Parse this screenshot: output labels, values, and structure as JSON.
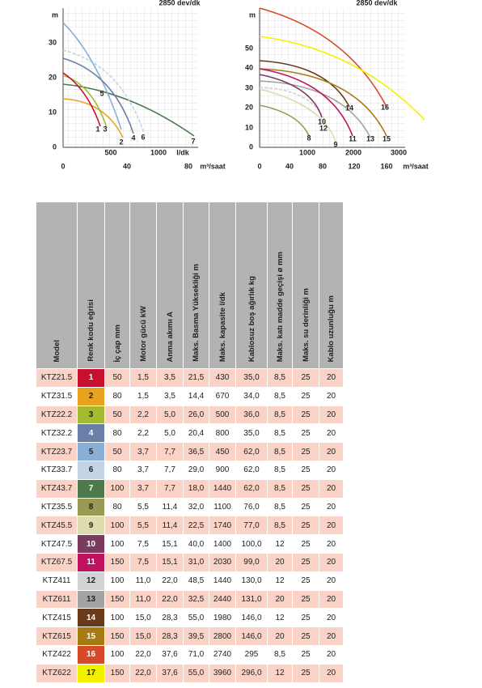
{
  "charts": [
    {
      "speed": "2850 dev/dk",
      "y_unit": "m",
      "yticks": [
        "0",
        "10",
        "20",
        "30"
      ],
      "flow_ticks": [
        "500",
        "1000"
      ],
      "flow_unit": "l/dk",
      "m3_ticks": [
        "0",
        "40",
        "80"
      ],
      "m3_unit": "m³/saat",
      "curve_labels": [
        "1",
        "3",
        "2",
        "4",
        "6",
        "7",
        "5"
      ]
    },
    {
      "speed": "2850 dev/dk",
      "y_unit": "m",
      "yticks": [
        "0",
        "10",
        "20",
        "30",
        "40",
        "50"
      ],
      "flow_ticks": [
        "1000",
        "2000",
        "3000"
      ],
      "m3_ticks": [
        "0",
        "40",
        "80",
        "120",
        "160"
      ],
      "m3_unit": "m³/saat",
      "curve_labels": [
        "8",
        "9",
        "10",
        "12",
        "11",
        "13",
        "14",
        "15",
        "16"
      ]
    }
  ],
  "table": {
    "headers": [
      "Model",
      "Renk kodu eğrisi",
      "İç çap mm",
      "Motor gücü kW",
      "Anma akımı A",
      "Maks. Basma Yüksekliği m",
      "Maks. kapasite l/dk",
      "Kablosuz boş ağırlık kg",
      "Maks. katı madde geçişi ø mm",
      "Maks. su derinliği m",
      "Kablo uzunluğu m"
    ],
    "code_colors": [
      "#c8102e",
      "#e8a21f",
      "#a3ba32",
      "#6a7fa8",
      "#8ab0d8",
      "#c5d3e6",
      "#4d7a4d",
      "#9a9a55",
      "#dcdcae",
      "#7a3b5e",
      "#c0135f",
      "#d2d2d2",
      "#a3a3a3",
      "#6b3a1a",
      "#a87a12",
      "#d64a2a",
      "#f2f200"
    ],
    "rows": [
      [
        "KTZ21.5",
        "1",
        "50",
        "1,5",
        "3,5",
        "21,5",
        "430",
        "35,0",
        "8,5",
        "25",
        "20"
      ],
      [
        "KTZ31.5",
        "2",
        "80",
        "1,5",
        "3,5",
        "14,4",
        "670",
        "34,0",
        "8,5",
        "25",
        "20"
      ],
      [
        "KTZ22.2",
        "3",
        "50",
        "2,2",
        "5,0",
        "26,0",
        "500",
        "36,0",
        "8,5",
        "25",
        "20"
      ],
      [
        "KTZ32.2",
        "4",
        "80",
        "2,2",
        "5,0",
        "20,4",
        "800",
        "35,0",
        "8,5",
        "25",
        "20"
      ],
      [
        "KTZ23.7",
        "5",
        "50",
        "3,7",
        "7,7",
        "36,5",
        "450",
        "62,0",
        "8,5",
        "25",
        "20"
      ],
      [
        "KTZ33.7",
        "6",
        "80",
        "3,7",
        "7,7",
        "29,0",
        "900",
        "62,0",
        "8,5",
        "25",
        "20"
      ],
      [
        "KTZ43.7",
        "7",
        "100",
        "3,7",
        "7,7",
        "18,0",
        "1440",
        "62,0",
        "8,5",
        "25",
        "20"
      ],
      [
        "KTZ35.5",
        "8",
        "80",
        "5,5",
        "11,4",
        "32,0",
        "1100",
        "76,0",
        "8,5",
        "25",
        "20"
      ],
      [
        "KTZ45.5",
        "9",
        "100",
        "5,5",
        "11,4",
        "22,5",
        "1740",
        "77,0",
        "8,5",
        "25",
        "20"
      ],
      [
        "KTZ47.5",
        "10",
        "100",
        "7,5",
        "15,1",
        "40,0",
        "1400",
        "100,0",
        "12",
        "25",
        "20"
      ],
      [
        "KTZ67.5",
        "11",
        "150",
        "7,5",
        "15,1",
        "31,0",
        "2030",
        "99,0",
        "20",
        "25",
        "20"
      ],
      [
        "KTZ411",
        "12",
        "100",
        "11,0",
        "22,0",
        "48,5",
        "1440",
        "130,0",
        "12",
        "25",
        "20"
      ],
      [
        "KTZ611",
        "13",
        "150",
        "11,0",
        "22,0",
        "32,5",
        "2440",
        "131,0",
        "20",
        "25",
        "20"
      ],
      [
        "KTZ415",
        "14",
        "100",
        "15,0",
        "28,3",
        "55,0",
        "1980",
        "146,0",
        "12",
        "25",
        "20"
      ],
      [
        "KTZ615",
        "15",
        "150",
        "15,0",
        "28,3",
        "39,5",
        "2800",
        "146,0",
        "20",
        "25",
        "20"
      ],
      [
        "KTZ422",
        "16",
        "100",
        "22,0",
        "37,6",
        "71,0",
        "2740",
        "295",
        "8,5",
        "25",
        "20"
      ],
      [
        "KTZ622",
        "17",
        "150",
        "22,0",
        "37,6",
        "55,0",
        "3960",
        "296,0",
        "12",
        "25",
        "20"
      ]
    ]
  }
}
